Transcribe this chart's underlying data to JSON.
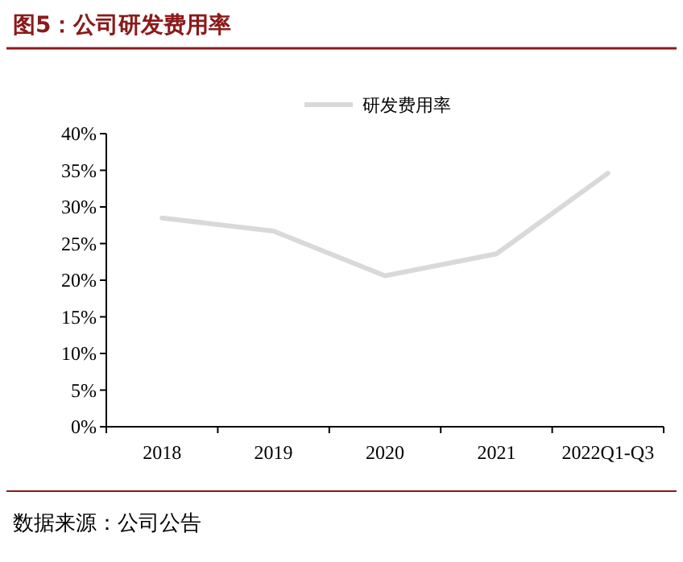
{
  "chart_data": {
    "type": "line",
    "title": "图5：公司研发费用率",
    "categories": [
      "2018",
      "2019",
      "2020",
      "2021",
      "2022Q1-Q3"
    ],
    "series": [
      {
        "name": "研发费用率",
        "color": "#d9d9d9",
        "values": [
          28.5,
          26.7,
          20.6,
          23.6,
          34.6
        ]
      }
    ],
    "ylim": [
      0,
      40
    ],
    "yticks": [
      {
        "value": 0,
        "label": "0%"
      },
      {
        "value": 5,
        "label": "5%"
      },
      {
        "value": 10,
        "label": "10%"
      },
      {
        "value": 15,
        "label": "15%"
      },
      {
        "value": 20,
        "label": "20%"
      },
      {
        "value": 25,
        "label": "25%"
      },
      {
        "value": 30,
        "label": "30%"
      },
      {
        "value": 35,
        "label": "35%"
      },
      {
        "value": 40,
        "label": "40%"
      }
    ],
    "legend": "top",
    "grid": false,
    "annotations": [
      "数据来源：公司公告"
    ]
  }
}
